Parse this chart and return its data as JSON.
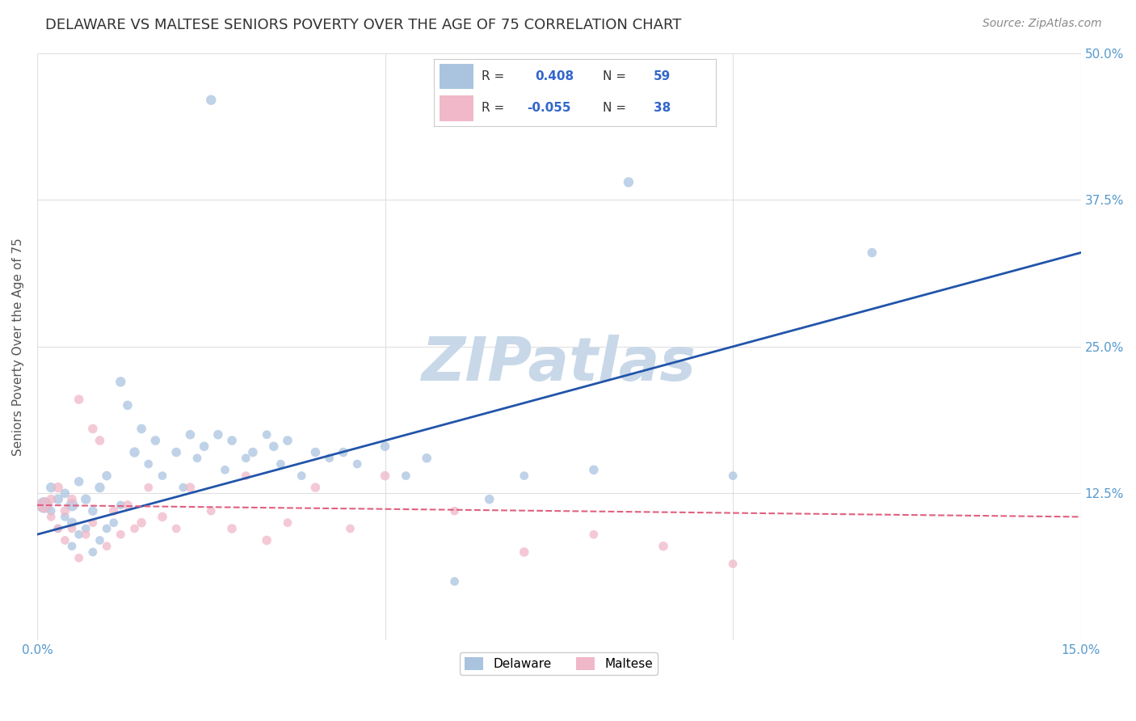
{
  "title": "DELAWARE VS MALTESE SENIORS POVERTY OVER THE AGE OF 75 CORRELATION CHART",
  "source": "Source: ZipAtlas.com",
  "ylabel": "Seniors Poverty Over the Age of 75",
  "xlim": [
    0.0,
    0.15
  ],
  "ylim": [
    0.0,
    0.5
  ],
  "xticks": [
    0.0,
    0.05,
    0.1,
    0.15
  ],
  "xtick_labels": [
    "0.0%",
    "",
    "",
    "15.0%"
  ],
  "yticks": [
    0.0,
    0.125,
    0.25,
    0.375,
    0.5
  ],
  "ytick_labels_right": [
    "",
    "12.5%",
    "25.0%",
    "37.5%",
    "50.0%"
  ],
  "delaware_R": 0.408,
  "delaware_N": 59,
  "maltese_R": -0.055,
  "maltese_N": 38,
  "delaware_color": "#aac4e0",
  "maltese_color": "#f0b8c8",
  "delaware_line_color": "#2255aa",
  "maltese_line_color": "#e06080",
  "background_color": "#ffffff",
  "grid_color": "#dddddd",
  "watermark": "ZIPatlas",
  "watermark_color": "#c8d8e8",
  "title_color": "#333333",
  "source_color": "#888888",
  "axis_label_color": "#5599cc",
  "legend_R_color": "#3366cc",
  "legend_N_color": "#3366cc",
  "delaware_x": [
    0.001,
    0.002,
    0.002,
    0.003,
    0.003,
    0.004,
    0.004,
    0.005,
    0.005,
    0.005,
    0.006,
    0.006,
    0.007,
    0.007,
    0.008,
    0.008,
    0.009,
    0.009,
    0.01,
    0.01,
    0.011,
    0.012,
    0.012,
    0.013,
    0.014,
    0.015,
    0.016,
    0.017,
    0.018,
    0.02,
    0.021,
    0.022,
    0.023,
    0.024,
    0.025,
    0.026,
    0.027,
    0.028,
    0.03,
    0.031,
    0.033,
    0.034,
    0.035,
    0.036,
    0.038,
    0.04,
    0.042,
    0.044,
    0.046,
    0.05,
    0.053,
    0.056,
    0.06,
    0.065,
    0.07,
    0.08,
    0.085,
    0.1,
    0.12
  ],
  "delaware_y": [
    0.115,
    0.11,
    0.13,
    0.095,
    0.12,
    0.105,
    0.125,
    0.08,
    0.1,
    0.115,
    0.09,
    0.135,
    0.095,
    0.12,
    0.075,
    0.11,
    0.085,
    0.13,
    0.095,
    0.14,
    0.1,
    0.22,
    0.115,
    0.2,
    0.16,
    0.18,
    0.15,
    0.17,
    0.14,
    0.16,
    0.13,
    0.175,
    0.155,
    0.165,
    0.46,
    0.175,
    0.145,
    0.17,
    0.155,
    0.16,
    0.175,
    0.165,
    0.15,
    0.17,
    0.14,
    0.16,
    0.155,
    0.16,
    0.15,
    0.165,
    0.14,
    0.155,
    0.05,
    0.12,
    0.14,
    0.145,
    0.39,
    0.14,
    0.33
  ],
  "maltese_x": [
    0.001,
    0.002,
    0.002,
    0.003,
    0.003,
    0.004,
    0.004,
    0.005,
    0.005,
    0.006,
    0.006,
    0.007,
    0.008,
    0.008,
    0.009,
    0.01,
    0.011,
    0.012,
    0.013,
    0.014,
    0.015,
    0.016,
    0.018,
    0.02,
    0.022,
    0.025,
    0.028,
    0.03,
    0.033,
    0.036,
    0.04,
    0.045,
    0.05,
    0.06,
    0.07,
    0.08,
    0.09,
    0.1
  ],
  "maltese_y": [
    0.115,
    0.105,
    0.12,
    0.095,
    0.13,
    0.085,
    0.11,
    0.095,
    0.12,
    0.07,
    0.205,
    0.09,
    0.18,
    0.1,
    0.17,
    0.08,
    0.11,
    0.09,
    0.115,
    0.095,
    0.1,
    0.13,
    0.105,
    0.095,
    0.13,
    0.11,
    0.095,
    0.14,
    0.085,
    0.1,
    0.13,
    0.095,
    0.14,
    0.11,
    0.075,
    0.09,
    0.08,
    0.065
  ],
  "delaware_sizes": [
    200,
    60,
    80,
    60,
    80,
    60,
    70,
    60,
    80,
    120,
    60,
    70,
    60,
    80,
    60,
    70,
    60,
    80,
    60,
    70,
    60,
    80,
    60,
    70,
    80,
    70,
    60,
    70,
    60,
    70,
    60,
    70,
    60,
    70,
    80,
    70,
    60,
    70,
    60,
    70,
    60,
    70,
    60,
    70,
    60,
    70,
    60,
    70,
    60,
    70,
    60,
    70,
    60,
    70,
    60,
    70,
    80,
    60,
    70
  ],
  "maltese_sizes": [
    180,
    60,
    70,
    60,
    80,
    60,
    70,
    60,
    70,
    60,
    70,
    60,
    70,
    60,
    70,
    60,
    70,
    60,
    70,
    60,
    70,
    60,
    70,
    60,
    70,
    60,
    70,
    60,
    70,
    60,
    70,
    60,
    70,
    60,
    70,
    60,
    70,
    60
  ]
}
